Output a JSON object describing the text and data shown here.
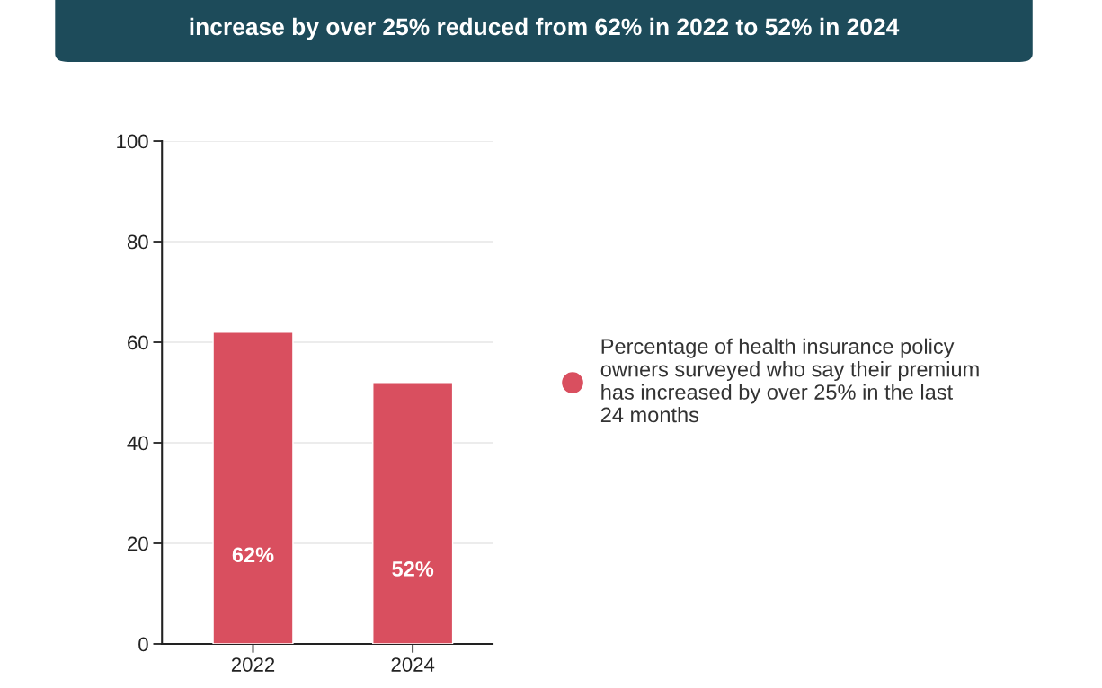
{
  "chart_data": {
    "type": "bar",
    "title": "increase by over 25% reduced from 62% in 2022 to 52% in 2024",
    "categories": [
      "2022",
      "2024"
    ],
    "series": [
      {
        "name": "Percentage of health insurance policy\nowners surveyed who say their premium\nhas increased by over 25% in the last\n24 months",
        "color": "#d94f5f",
        "values": [
          62,
          52
        ],
        "value_labels": [
          "62%",
          "52%"
        ]
      }
    ],
    "ylim": [
      0,
      100
    ],
    "yticks": [
      0,
      20,
      40,
      60,
      80,
      100
    ],
    "grid": "y",
    "legend": "right"
  }
}
